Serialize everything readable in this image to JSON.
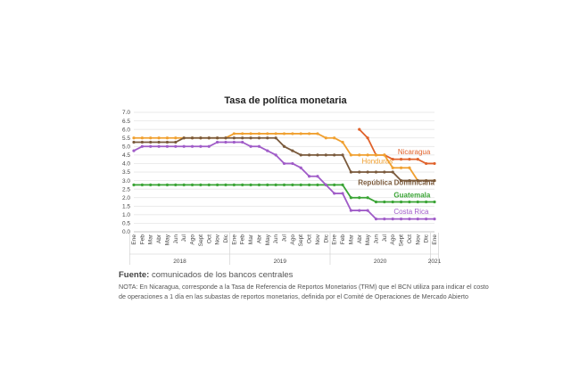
{
  "footer": {
    "fuente_label": "Fuente:",
    "fuente_text": "comunicados de los bancos centrales",
    "nota": "NOTA: En Nicaragua, corresponde a la Tasa de Referencia de Reportos Monetarios (TRM) que el BCN utiliza para indicar el costo de operaciones a 1 día en las subastas de reportos monetarios, definida por el Comité de Operaciones de Mercado Abierto"
  },
  "chart_data": {
    "type": "line",
    "title": "Tasa de política monetaria",
    "xlabel": "",
    "ylabel": "",
    "ylim": [
      0,
      7
    ],
    "yticks": [
      "0.0",
      "0.5",
      "1.0",
      "1.5",
      "2.0",
      "2.5",
      "3.0",
      "3.5",
      "4.0",
      "4.5",
      "5.0",
      "5.5",
      "6.0",
      "6.5",
      "7.0"
    ],
    "grid": true,
    "legend": "inline labels",
    "categories": [
      "Ene",
      "Feb",
      "Mar",
      "Abr",
      "May",
      "Jun",
      "Jul",
      "Ago",
      "Sept",
      "Oct",
      "Nov",
      "Dic",
      "Ene",
      "Feb",
      "Mar",
      "Abr",
      "May",
      "Jun",
      "Jul",
      "Ago",
      "Sept",
      "Oct",
      "Nov",
      "Dic",
      "Ene",
      "Feb",
      "Mar",
      "Abr",
      "May",
      "Jun",
      "Jul",
      "Ago",
      "Sept",
      "Oct",
      "Nov",
      "Dic",
      "Ene"
    ],
    "years": [
      {
        "label": "2018",
        "start": 0,
        "end": 11
      },
      {
        "label": "2019",
        "start": 12,
        "end": 23
      },
      {
        "label": "2020",
        "start": 24,
        "end": 35
      },
      {
        "label": "2021",
        "start": 36,
        "end": 36
      }
    ],
    "series": [
      {
        "name": "Nicaragua",
        "color": "#e0622b",
        "values": [
          null,
          null,
          null,
          null,
          null,
          null,
          null,
          null,
          null,
          null,
          null,
          null,
          null,
          null,
          null,
          null,
          null,
          null,
          null,
          null,
          null,
          null,
          null,
          null,
          null,
          null,
          null,
          6.0,
          5.5,
          4.5,
          4.5,
          4.25,
          4.25,
          4.25,
          4.25,
          4.0,
          4.0
        ]
      },
      {
        "name": "Honduras",
        "color": "#f0a030",
        "values": [
          5.5,
          5.5,
          5.5,
          5.5,
          5.5,
          5.5,
          5.5,
          5.5,
          5.5,
          5.5,
          5.5,
          5.5,
          5.75,
          5.75,
          5.75,
          5.75,
          5.75,
          5.75,
          5.75,
          5.75,
          5.75,
          5.75,
          5.75,
          5.5,
          5.5,
          5.25,
          4.5,
          4.5,
          4.5,
          4.5,
          4.5,
          3.75,
          3.75,
          3.75,
          3.0,
          3.0,
          3.0
        ]
      },
      {
        "name": "República Dominicana",
        "color": "#7a5a3c",
        "values": [
          5.25,
          5.25,
          5.25,
          5.25,
          5.25,
          5.25,
          5.5,
          5.5,
          5.5,
          5.5,
          5.5,
          5.5,
          5.5,
          5.5,
          5.5,
          5.5,
          5.5,
          5.5,
          5.0,
          4.75,
          4.5,
          4.5,
          4.5,
          4.5,
          4.5,
          4.5,
          3.5,
          3.5,
          3.5,
          3.5,
          3.5,
          3.5,
          3.0,
          3.0,
          3.0,
          3.0,
          3.0
        ]
      },
      {
        "name": "Guatemala",
        "color": "#3aa435",
        "values": [
          2.75,
          2.75,
          2.75,
          2.75,
          2.75,
          2.75,
          2.75,
          2.75,
          2.75,
          2.75,
          2.75,
          2.75,
          2.75,
          2.75,
          2.75,
          2.75,
          2.75,
          2.75,
          2.75,
          2.75,
          2.75,
          2.75,
          2.75,
          2.75,
          2.75,
          2.75,
          2.0,
          2.0,
          2.0,
          1.75,
          1.75,
          1.75,
          1.75,
          1.75,
          1.75,
          1.75,
          1.75
        ]
      },
      {
        "name": "Costa Rica",
        "color": "#a05cc8",
        "values": [
          4.75,
          5.0,
          5.0,
          5.0,
          5.0,
          5.0,
          5.0,
          5.0,
          5.0,
          5.0,
          5.25,
          5.25,
          5.25,
          5.25,
          5.0,
          5.0,
          4.75,
          4.5,
          4.0,
          4.0,
          3.75,
          3.25,
          3.25,
          2.75,
          2.25,
          2.25,
          1.25,
          1.25,
          1.25,
          0.75,
          0.75,
          0.75,
          0.75,
          0.75,
          0.75,
          0.75,
          0.75
        ]
      }
    ]
  }
}
